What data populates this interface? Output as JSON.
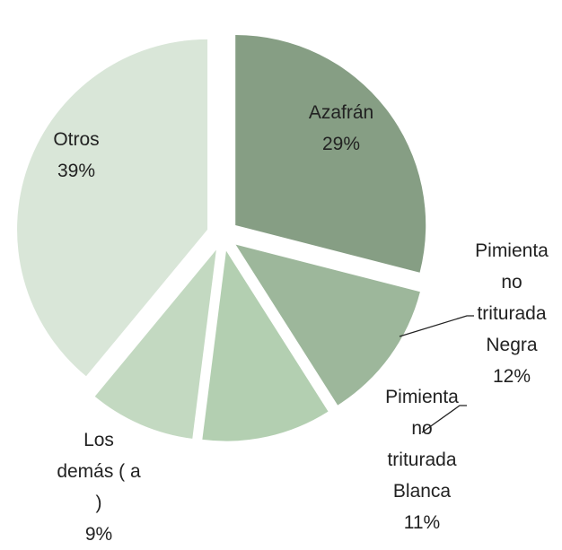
{
  "chart_data": {
    "type": "pie",
    "categories": [
      "Azafrán",
      "Pimienta no triturada Negra",
      "Pimienta no triturada Blanca",
      "Los demás ( a )",
      "Otros"
    ],
    "values": [
      29,
      12,
      11,
      9,
      39
    ],
    "value_labels": [
      "29%",
      "12%",
      "11%",
      "9%",
      "39%"
    ],
    "colors": [
      "#869e84",
      "#9db79b",
      "#b3cfb1",
      "#c3d9c1",
      "#d9e6d8"
    ]
  }
}
